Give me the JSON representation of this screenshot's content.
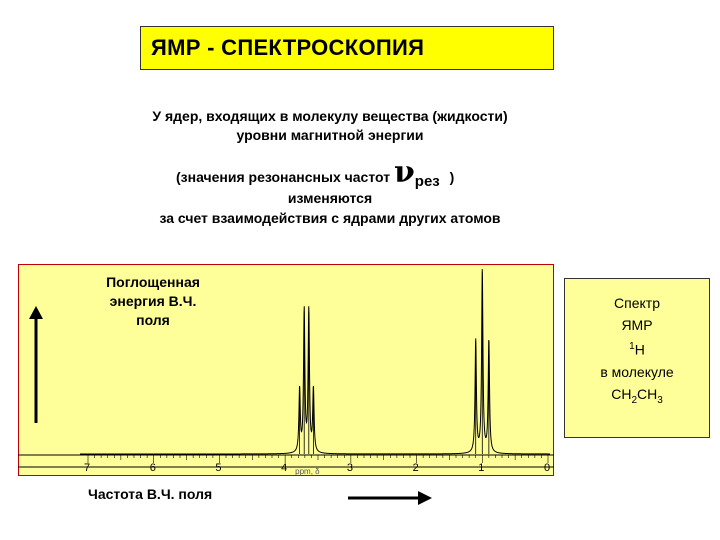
{
  "title": "ЯМР - СПЕКТРОСКОПИЯ",
  "description": {
    "line1": "У ядер, входящих в молекулу вещества (жидкости)",
    "line2": "уровни магнитной энергии",
    "line3_prefix": "(значения резонансных частот",
    "nu_symbol": "ν",
    "nu_subscript": "рез",
    "line3_suffix": ")",
    "line4": "изменяются",
    "line5": "за счет взаимодействия с ядрами других атомов"
  },
  "y_caption": [
    "Поглощенная",
    "энергия В.Ч.",
    "поля"
  ],
  "x_caption": "Частота В.Ч. поля",
  "legend": {
    "line1": "Спектр",
    "line2": "ЯМР",
    "nucleus_mass": "1",
    "nucleus_symbol": "H",
    "line4": "в молекуле",
    "formula": {
      "a": "CH",
      "a_sub": "2",
      "b": "CH",
      "b_sub": "3"
    }
  },
  "colors": {
    "title_bg": "#ffff00",
    "chart_bg": "#ffff99",
    "spectrum": "#000000",
    "legend_bg": "#ffff99"
  },
  "chart_data": {
    "type": "line",
    "x_reversed": true,
    "xlim": [
      0,
      7
    ],
    "x_ticks": [
      "7",
      "6",
      "5",
      "4",
      "3",
      "2",
      "1",
      "0"
    ],
    "x_tick_values": [
      7,
      6,
      5,
      4,
      3,
      2,
      1,
      0
    ],
    "x_unit_label": "ppm, δ",
    "peaks": [
      {
        "ppm": 3.78,
        "intensity": 0.35
      },
      {
        "ppm": 3.71,
        "intensity": 0.78
      },
      {
        "ppm": 3.64,
        "intensity": 0.78
      },
      {
        "ppm": 3.57,
        "intensity": 0.35
      },
      {
        "ppm": 1.1,
        "intensity": 0.62
      },
      {
        "ppm": 1.0,
        "intensity": 1.0
      },
      {
        "ppm": 0.9,
        "intensity": 0.62
      }
    ]
  }
}
